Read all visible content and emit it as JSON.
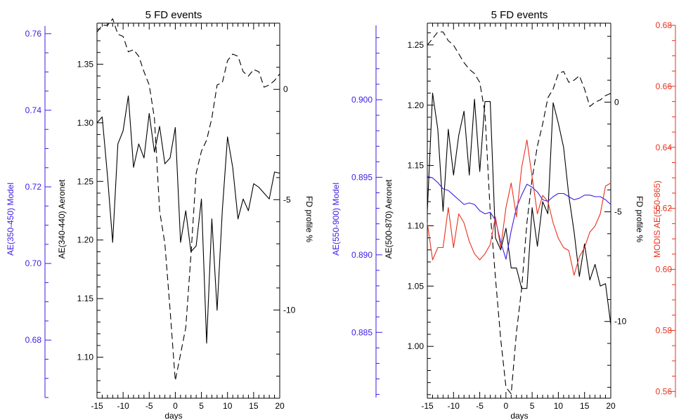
{
  "colors": {
    "black": "#000000",
    "model_blue": "#3a1de6",
    "modis_red": "#e8311e"
  },
  "chart_data": [
    {
      "type": "line",
      "title": "5 FD events",
      "xlabel": "days",
      "xlim": [
        -15,
        20
      ],
      "xticks": [
        -15,
        -10,
        -5,
        0,
        5,
        10,
        15,
        20
      ],
      "axes": {
        "model": {
          "label": "AE(350-450) Model",
          "color": "#3a1de6",
          "ylim": [
            0.665,
            0.762
          ],
          "ticks": [
            0.68,
            0.7,
            0.72,
            0.74,
            0.76
          ],
          "tick_decimals": 2
        },
        "aeronet": {
          "label": "AE(340-440) Aeronet",
          "color": "#000000",
          "ylim": [
            1.065,
            1.385
          ],
          "ticks": [
            1.1,
            1.15,
            1.2,
            1.25,
            1.3,
            1.35
          ],
          "tick_decimals": 2
        },
        "fd": {
          "label": "FD profile %",
          "color": "#000000",
          "ylim": [
            -14.0,
            3.0
          ],
          "ticks": [
            0,
            -5,
            -10
          ],
          "tick_decimals": 0
        }
      },
      "series": [
        {
          "axis": "aeronet",
          "style": "solid",
          "color": "#000000",
          "x": [
            -15,
            -14,
            -13,
            -12,
            -11,
            -10,
            -9,
            -8,
            -7,
            -6,
            -5,
            -4,
            -3,
            -2,
            -1,
            0,
            1,
            2,
            3,
            4,
            5,
            6,
            7,
            8,
            9,
            10,
            11,
            12,
            13,
            14,
            15,
            16,
            17,
            18,
            19,
            20
          ],
          "values": [
            1.3,
            1.305,
            1.255,
            1.198,
            1.282,
            1.293,
            1.323,
            1.262,
            1.282,
            1.27,
            1.308,
            1.275,
            1.297,
            1.265,
            1.27,
            1.296,
            1.198,
            1.225,
            1.19,
            1.195,
            1.235,
            1.112,
            1.218,
            1.14,
            1.225,
            1.288,
            1.262,
            1.218,
            1.235,
            1.225,
            1.248,
            1.245,
            1.24,
            1.235,
            1.258,
            1.257
          ]
        },
        {
          "axis": "fd",
          "style": "dashed",
          "color": "#000000",
          "x": [
            -15,
            -14,
            -13,
            -12,
            -11,
            -10,
            -9,
            -8,
            -7,
            -6,
            -5,
            -4,
            -3,
            -2,
            -1,
            0,
            1,
            2,
            3,
            4,
            5,
            6,
            7,
            8,
            9,
            10,
            11,
            12,
            13,
            14,
            15,
            16,
            17,
            18,
            19,
            20
          ],
          "values": [
            2.6,
            2.9,
            2.9,
            3.2,
            2.5,
            2.4,
            1.7,
            1.8,
            1.5,
            0.8,
            0.2,
            -1.3,
            -5.5,
            -7.0,
            -10.0,
            -13.2,
            -12.0,
            -10.8,
            -7.5,
            -3.8,
            -2.8,
            -2.3,
            -1.3,
            0.2,
            0.3,
            1.3,
            1.6,
            1.5,
            0.8,
            0.6,
            0.9,
            0.8,
            0.1,
            0.2,
            0.4,
            0.7
          ]
        },
        {
          "axis": "model",
          "style": "solid",
          "color": "#3a1de6",
          "x": [
            -15,
            -14,
            -13,
            -12,
            -11,
            -10,
            -9,
            -8,
            -7,
            -6,
            -5,
            -4,
            -3,
            -2,
            -1,
            0,
            1,
            2,
            3,
            4,
            5,
            6,
            7,
            8,
            9,
            10,
            11,
            12,
            13,
            14,
            15,
            16,
            17,
            18,
            19,
            20
          ],
          "values": [
            1.255,
            1.251,
            1.249,
            1.248,
            1.2475,
            1.247,
            1.246,
            1.245,
            1.243,
            1.241,
            1.238,
            1.234,
            1.229,
            1.221,
            1.211,
            1.2,
            1.193,
            1.189,
            1.187,
            1.19,
            1.197,
            1.208,
            1.219,
            1.229,
            1.237,
            1.242,
            1.245,
            1.247,
            1.248,
            1.2485,
            1.249,
            1.2492,
            1.2492,
            1.249,
            1.2485,
            1.248
          ]
        }
      ]
    },
    {
      "type": "line",
      "title": "5 FD events",
      "xlabel": "days",
      "xlim": [
        -15,
        20
      ],
      "xticks": [
        -15,
        -10,
        -5,
        0,
        5,
        10,
        15,
        20
      ],
      "axes": {
        "model": {
          "label": "AE(550-900) Model",
          "color": "#3a1de6",
          "ylim": [
            0.8808,
            0.9048
          ],
          "ticks": [
            0.885,
            0.89,
            0.895,
            0.9
          ],
          "tick_decimals": 3
        },
        "aeronet": {
          "label": "AE(500-870) Aeronet",
          "color": "#000000",
          "ylim": [
            0.957,
            1.268
          ],
          "ticks": [
            1.0,
            1.05,
            1.1,
            1.15,
            1.2,
            1.25
          ],
          "tick_decimals": 2
        },
        "fd": {
          "label": "FD profile %",
          "color": "#000000",
          "ylim": [
            -13.5,
            3.6
          ],
          "ticks": [
            0,
            -5,
            -10
          ],
          "tick_decimals": 0
        },
        "modis": {
          "label": "MODIS AE(550-865)",
          "color": "#e8311e",
          "ylim": [
            0.558,
            0.68
          ],
          "ticks": [
            0.56,
            0.58,
            0.6,
            0.62,
            0.64,
            0.66,
            0.68
          ],
          "tick_decimals": 2
        }
      },
      "series": [
        {
          "axis": "aeronet",
          "style": "solid",
          "color": "#000000",
          "x": [
            -15,
            -14,
            -13,
            -12,
            -11,
            -10,
            -9,
            -8,
            -7,
            -6,
            -5,
            -4,
            -3,
            -2,
            -1,
            0,
            1,
            2,
            3,
            4,
            5,
            6,
            7,
            8,
            9,
            10,
            11,
            12,
            13,
            14,
            15,
            16,
            17,
            18,
            19,
            20
          ],
          "values": [
            1.112,
            1.21,
            1.18,
            1.112,
            1.18,
            1.142,
            1.175,
            1.195,
            1.142,
            1.205,
            1.145,
            1.203,
            1.203,
            1.09,
            1.08,
            1.098,
            1.065,
            1.065,
            1.048,
            1.048,
            1.115,
            1.083,
            1.12,
            1.11,
            1.202,
            1.185,
            1.165,
            1.125,
            1.095,
            1.058,
            1.085,
            1.055,
            1.068,
            1.05,
            1.052,
            1.018
          ]
        },
        {
          "axis": "fd",
          "style": "dashed",
          "color": "#000000",
          "x": [
            -15,
            -14,
            -13,
            -12,
            -11,
            -10,
            -9,
            -8,
            -7,
            -6,
            -5,
            -4,
            -3,
            -2,
            -1,
            0,
            1,
            2,
            3,
            4,
            5,
            6,
            7,
            8,
            9,
            10,
            11,
            12,
            13,
            14,
            15,
            16,
            17,
            18,
            19,
            20
          ],
          "values": [
            2.6,
            2.9,
            3.2,
            3.2,
            2.8,
            2.6,
            2.2,
            1.8,
            1.5,
            1.3,
            0.9,
            -0.5,
            -5.0,
            -8.0,
            -10.8,
            -13.0,
            -13.3,
            -10.5,
            -8.5,
            -5.5,
            -3.5,
            -2.0,
            -1.0,
            0.2,
            0.6,
            1.3,
            1.4,
            0.9,
            1.0,
            1.2,
            0.6,
            -0.2,
            0.0,
            0.1,
            0.3,
            0.4
          ]
        },
        {
          "axis": "model",
          "style": "solid",
          "color": "#3a1de6",
          "x": [
            -15,
            -14,
            -13,
            -12,
            -11,
            -10,
            -9,
            -8,
            -7,
            -6,
            -5,
            -4,
            -3,
            -2,
            -1,
            0,
            1,
            2,
            3,
            4,
            5,
            6,
            7,
            8,
            9,
            10,
            11,
            12,
            13,
            14,
            15,
            16,
            17,
            18,
            19,
            20
          ],
          "values": [
            0.895,
            0.8949,
            0.8946,
            0.8942,
            0.8941,
            0.8938,
            0.8935,
            0.8932,
            0.8933,
            0.8932,
            0.8928,
            0.8926,
            0.8927,
            0.8922,
            0.8908,
            0.8897,
            0.8915,
            0.893,
            0.8938,
            0.8945,
            0.8943,
            0.894,
            0.8935,
            0.8934,
            0.8937,
            0.8939,
            0.8939,
            0.8937,
            0.8935,
            0.8936,
            0.8938,
            0.8938,
            0.8937,
            0.8937,
            0.8935,
            0.8932
          ]
        },
        {
          "axis": "modis",
          "style": "solid",
          "color": "#e8311e",
          "x": [
            -15,
            -14,
            -13,
            -12,
            -11,
            -10,
            -9,
            -8,
            -7,
            -6,
            -5,
            -4,
            -3,
            -2,
            -1,
            0,
            1,
            2,
            3,
            4,
            5,
            6,
            7,
            8,
            9,
            10,
            11,
            12,
            13,
            14,
            15,
            16,
            17,
            18,
            19,
            20
          ],
          "values": [
            0.615,
            0.603,
            0.607,
            0.607,
            0.62,
            0.607,
            0.618,
            0.615,
            0.609,
            0.605,
            0.603,
            0.605,
            0.608,
            0.617,
            0.607,
            0.62,
            0.628,
            0.617,
            0.633,
            0.642,
            0.63,
            0.618,
            0.624,
            0.622,
            0.615,
            0.61,
            0.607,
            0.606,
            0.598,
            0.604,
            0.607,
            0.612,
            0.614,
            0.618,
            0.627,
            0.628
          ]
        }
      ]
    }
  ]
}
